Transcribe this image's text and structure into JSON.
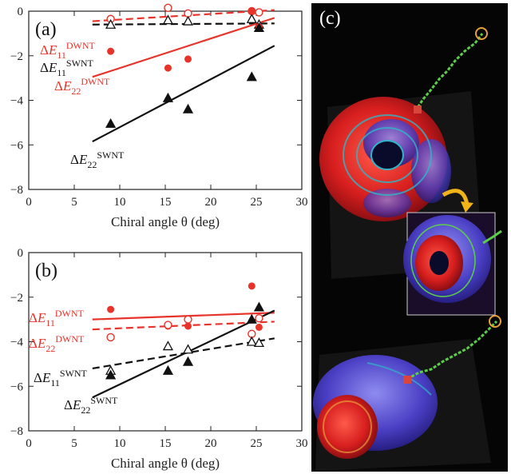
{
  "chart_data": [
    {
      "panel": "(a)",
      "type": "scatter",
      "xlabel": "Chiral angle θ  (deg)",
      "xlim": [
        0,
        30
      ],
      "ylim": [
        -8,
        0
      ],
      "xticks": [
        0,
        5,
        10,
        15,
        20,
        25,
        30
      ],
      "yticks": [
        0,
        -2,
        -4,
        -6,
        -8
      ],
      "series": [
        {
          "name": "ΔE11 DWNT",
          "sub": "11",
          "sup": "DWNT",
          "color": "#e8332a",
          "marker": "open-circle",
          "line": "dashed",
          "x": [
            9,
            15.3,
            17.5,
            24.5,
            25.3
          ],
          "y": [
            -0.35,
            0.15,
            -0.1,
            0.0,
            -0.05
          ],
          "fit": [
            [
              7,
              -0.45
            ],
            [
              27,
              0.05
            ]
          ]
        },
        {
          "name": "ΔE11 SWNT",
          "sub": "11",
          "sup": "SWNT",
          "color": "#111111",
          "marker": "open-triangle",
          "line": "dashed",
          "x": [
            9,
            15.3,
            17.5,
            24.5,
            25.3
          ],
          "y": [
            -0.6,
            -0.4,
            -0.45,
            -0.35,
            -0.6
          ],
          "fit": [
            [
              7,
              -0.6
            ],
            [
              27,
              -0.55
            ]
          ]
        },
        {
          "name": "ΔE22 DWNT",
          "sub": "22",
          "sup": "DWNT",
          "color": "#e8332a",
          "marker": "filled-circle",
          "line": "solid",
          "x": [
            9,
            15.3,
            17.5,
            24.5,
            25.3
          ],
          "y": [
            -1.8,
            -2.55,
            -2.15,
            0.0,
            -0.7
          ],
          "fit": [
            [
              7,
              -2.95
            ],
            [
              27,
              -0.3
            ]
          ]
        },
        {
          "name": "ΔE22 SWNT",
          "sub": "22",
          "sup": "SWNT",
          "color": "#111111",
          "marker": "filled-triangle",
          "line": "solid",
          "x": [
            9,
            15.3,
            17.5,
            24.5,
            25.3
          ],
          "y": [
            -5.05,
            -3.9,
            -4.4,
            -2.95,
            -0.75
          ],
          "fit": [
            [
              7,
              -5.85
            ],
            [
              27,
              -1.55
            ]
          ]
        }
      ]
    },
    {
      "panel": "(b)",
      "type": "scatter",
      "xlabel": "Chiral angle θ  (deg)",
      "xlim": [
        0,
        30
      ],
      "ylim": [
        -8,
        0
      ],
      "xticks": [
        0,
        5,
        10,
        15,
        20,
        25,
        30
      ],
      "yticks": [
        0,
        -2,
        -4,
        -6,
        -8
      ],
      "series": [
        {
          "name": "ΔE11 DWNT",
          "sub": "11",
          "sup": "DWNT",
          "color": "#e8332a",
          "marker": "filled-circle",
          "line": "solid",
          "x": [
            9,
            15.3,
            17.5,
            24.5,
            25.3
          ],
          "y": [
            -2.55,
            -3.3,
            -3.3,
            -1.5,
            -3.35
          ],
          "fit": [
            [
              7,
              -3.0
            ],
            [
              27,
              -2.7
            ]
          ]
        },
        {
          "name": "ΔE22 DWNT",
          "sub": "22",
          "sup": "DWNT",
          "color": "#e8332a",
          "marker": "open-circle",
          "line": "dashed",
          "x": [
            9,
            15.3,
            17.5,
            24.5,
            25.3
          ],
          "y": [
            -3.8,
            -3.25,
            -3.0,
            -3.65,
            -2.95
          ],
          "fit": [
            [
              7,
              -3.45
            ],
            [
              27,
              -3.1
            ]
          ]
        },
        {
          "name": "ΔE11 SWNT",
          "sub": "11",
          "sup": "SWNT",
          "color": "#111111",
          "marker": "open-triangle",
          "line": "dashed",
          "x": [
            9,
            15.3,
            17.5,
            24.5,
            25.3
          ],
          "y": [
            -5.3,
            -4.2,
            -4.35,
            -4.0,
            -4.05
          ],
          "fit": [
            [
              7,
              -5.2
            ],
            [
              27,
              -3.85
            ]
          ]
        },
        {
          "name": "ΔE22 SWNT",
          "sub": "22",
          "sup": "SWNT",
          "color": "#111111",
          "marker": "filled-triangle",
          "line": "solid",
          "x": [
            9,
            15.3,
            17.5,
            24.5,
            25.3
          ],
          "y": [
            -5.5,
            -5.3,
            -4.9,
            -3.0,
            -2.45
          ],
          "fit": [
            [
              7,
              -6.5
            ],
            [
              27,
              -2.6
            ]
          ]
        }
      ]
    }
  ],
  "panel_c": {
    "label": "(c)"
  }
}
